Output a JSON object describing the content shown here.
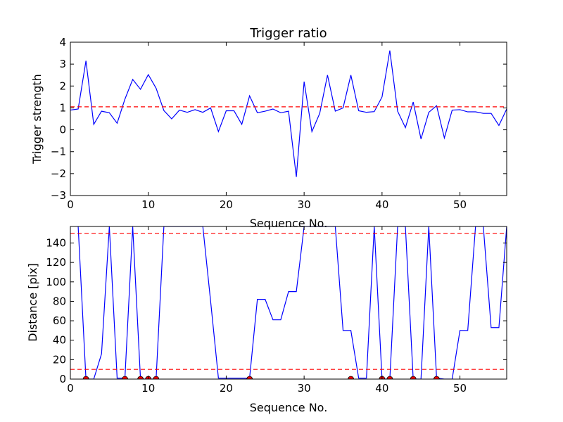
{
  "chart_data": [
    {
      "type": "line",
      "title": "Trigger ratio",
      "xlabel": "Sequence No.",
      "ylabel": "Trigger strength",
      "xlim": [
        0,
        56
      ],
      "ylim": [
        -3,
        4
      ],
      "xticks": [
        0,
        10,
        20,
        30,
        40,
        50
      ],
      "yticks": [
        -3,
        -2,
        -1,
        0,
        1,
        2,
        3,
        4
      ],
      "grid": false,
      "series": [
        {
          "color": "#0000ff",
          "x": [
            0,
            1,
            2,
            3,
            4,
            5,
            6,
            7,
            8,
            9,
            10,
            11,
            12,
            13,
            14,
            15,
            16,
            17,
            18,
            19,
            20,
            21,
            22,
            23,
            24,
            25,
            26,
            27,
            28,
            29,
            30,
            31,
            32,
            33,
            34,
            35,
            36,
            37,
            38,
            39,
            40,
            41,
            42,
            43,
            44,
            45,
            46,
            47,
            48,
            49,
            50,
            51,
            52,
            53,
            54,
            55,
            56
          ],
          "y": [
            0.9,
            0.95,
            3.15,
            0.25,
            0.85,
            0.78,
            0.3,
            1.4,
            2.3,
            1.85,
            2.52,
            1.9,
            0.88,
            0.5,
            0.9,
            0.8,
            0.92,
            0.8,
            1.0,
            -0.08,
            0.87,
            0.87,
            0.25,
            1.55,
            0.78,
            0.85,
            0.95,
            0.78,
            0.85,
            -2.15,
            2.2,
            -0.08,
            0.75,
            2.5,
            0.85,
            1.0,
            2.5,
            0.87,
            0.8,
            0.83,
            1.5,
            3.62,
            0.85,
            0.1,
            1.27,
            -0.42,
            0.8,
            1.1,
            -0.37,
            0.9,
            0.92,
            0.82,
            0.82,
            0.75,
            0.75,
            0.2,
            0.95
          ]
        }
      ],
      "reference_lines": [
        {
          "y": 1.05,
          "color": "#ff0000",
          "style": "dashed"
        }
      ]
    },
    {
      "type": "line",
      "title": "",
      "xlabel": "Sequence No.",
      "ylabel": "Distance [pix]",
      "xlim": [
        0,
        56
      ],
      "ylim": [
        0,
        157
      ],
      "xticks": [
        0,
        10,
        20,
        30,
        40,
        50
      ],
      "yticks": [
        0,
        20,
        40,
        60,
        80,
        100,
        120,
        140
      ],
      "grid": false,
      "series": [
        {
          "color": "#0000ff",
          "x": [
            1,
            2,
            3,
            4,
            5,
            6,
            7,
            8,
            9,
            10,
            11,
            12,
            17,
            18,
            19,
            20,
            22,
            23,
            24,
            25,
            26,
            27,
            28,
            29,
            30,
            31,
            34,
            35,
            36,
            37,
            38,
            39,
            40,
            41,
            42,
            43,
            44,
            45,
            46,
            47,
            48,
            49,
            50,
            51,
            52,
            53,
            54,
            55,
            56
          ],
          "y": [
            157,
            0,
            0,
            26,
            157,
            1,
            1,
            157,
            0,
            0,
            0,
            157,
            157,
            80,
            1,
            1,
            1,
            1,
            82,
            82,
            61,
            61,
            90,
            90,
            157,
            157,
            157,
            50,
            50,
            1,
            1,
            157,
            0,
            0,
            157,
            157,
            0,
            0,
            157,
            1,
            0,
            0,
            50,
            50,
            157,
            157,
            53,
            53,
            157
          ]
        },
        {
          "name": "",
          "type": "scatter",
          "color": "#ff0000",
          "x": [
            2,
            7,
            9,
            10,
            11,
            23,
            36,
            40,
            41,
            44,
            47
          ],
          "y": [
            0,
            0,
            0,
            0,
            0,
            0,
            0,
            0,
            0,
            0,
            0
          ]
        }
      ],
      "reference_lines": [
        {
          "y": 150,
          "color": "#ff0000",
          "style": "dashed"
        },
        {
          "y": 10,
          "color": "#ff0000",
          "style": "dashed"
        }
      ]
    }
  ]
}
